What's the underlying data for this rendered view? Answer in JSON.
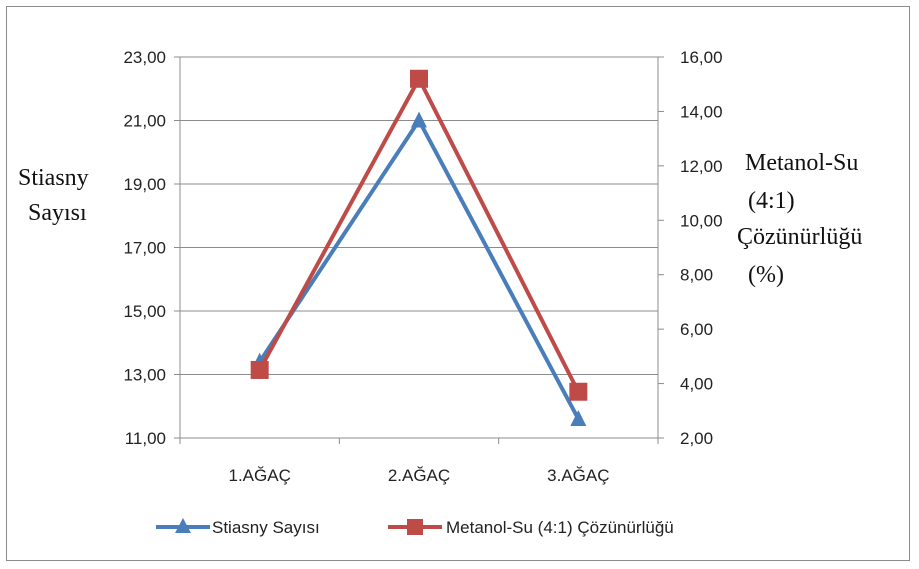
{
  "chart_data": {
    "type": "line",
    "categories": [
      "1.AĞAÇ",
      "2.AĞAÇ",
      "3.AĞAÇ"
    ],
    "y_left": {
      "label_lines": [
        "Stiasny",
        "Sayısı"
      ],
      "ticks": [
        "11,00",
        "13,00",
        "15,00",
        "17,00",
        "19,00",
        "21,00",
        "23,00"
      ],
      "range": [
        11,
        23
      ]
    },
    "y_right": {
      "label_lines": [
        "Metanol-Su",
        "(4:1)",
        "Çözünürlüğü",
        "(%)"
      ],
      "ticks": [
        "2,00",
        "4,00",
        "6,00",
        "8,00",
        "10,00",
        "12,00",
        "14,00",
        "16,00"
      ],
      "range": [
        2,
        16
      ]
    },
    "grid": true,
    "legend_position": "bottom",
    "series": [
      {
        "name": "Stiasny Sayısı",
        "axis": "left",
        "values": [
          13.4,
          21.0,
          11.6
        ],
        "color": "#4a7ebb",
        "marker": "triangle"
      },
      {
        "name": "Metanol-Su (4:1) Çözünürlüğü",
        "axis": "right",
        "values": [
          4.5,
          15.2,
          3.7
        ],
        "color": "#be4b48",
        "marker": "square"
      }
    ]
  }
}
